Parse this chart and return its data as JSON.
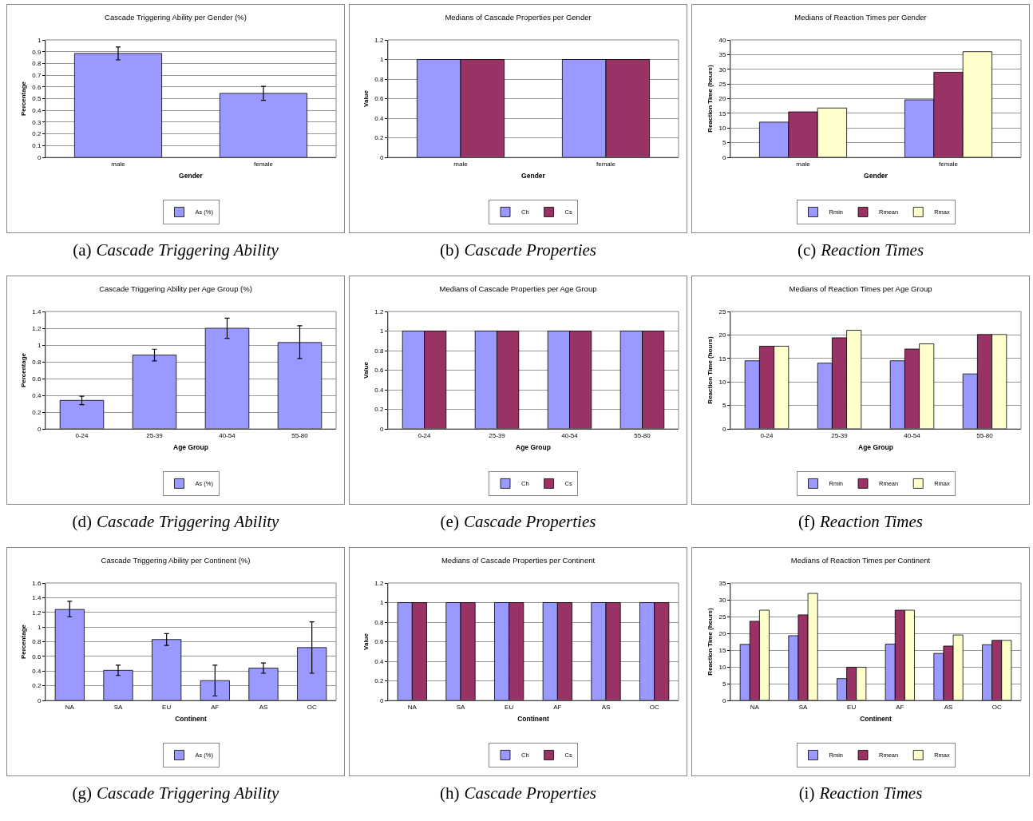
{
  "chart_data": [
    {
      "type": "bar",
      "title": "Cascade Triggering Ability per Gender (%)",
      "xlabel": "Gender",
      "ylabel": "Percentage",
      "categories": [
        "male",
        "female"
      ],
      "series": [
        {
          "name": "As (%)",
          "color": "#9999ff",
          "values": [
            0.885,
            0.545
          ],
          "errors": [
            [
              0.83,
              0.94
            ],
            [
              0.485,
              0.605
            ]
          ]
        }
      ],
      "ylim": [
        0,
        1
      ],
      "yticks": [
        0,
        0.1,
        0.2,
        0.3,
        0.4,
        0.5,
        0.6,
        0.7,
        0.8,
        0.9,
        1
      ],
      "grid": "y",
      "legend": "bottom",
      "annotations": [
        "(a) Cascade Triggering Ability"
      ]
    },
    {
      "type": "bar",
      "title": "Medians of Cascade Properties per Gender",
      "xlabel": "Gender",
      "ylabel": "Value",
      "categories": [
        "male",
        "female"
      ],
      "series": [
        {
          "name": "Ch",
          "color": "#9999ff",
          "values": [
            1,
            1
          ]
        },
        {
          "name": "Cs",
          "color": "#993366",
          "values": [
            1,
            1
          ]
        }
      ],
      "ylim": [
        0,
        1.2
      ],
      "yticks": [
        0,
        0.2,
        0.4,
        0.6,
        0.8,
        1,
        1.2
      ],
      "grid": "y",
      "legend": "bottom",
      "annotations": [
        "(b) Cascade Properties"
      ]
    },
    {
      "type": "bar",
      "title": "Medians of Reaction Times per Gender",
      "xlabel": "Gender",
      "ylabel": "Reaction Time (hours)",
      "categories": [
        "male",
        "female"
      ],
      "series": [
        {
          "name": "Rmin",
          "color": "#9999ff",
          "values": [
            12,
            19.6
          ]
        },
        {
          "name": "Rmean",
          "color": "#993366",
          "values": [
            15.5,
            29
          ]
        },
        {
          "name": "Rmax",
          "color": "#ffffcc",
          "values": [
            16.8,
            36
          ]
        }
      ],
      "ylim": [
        0,
        40
      ],
      "yticks": [
        0,
        5,
        10,
        15,
        20,
        25,
        30,
        35,
        40
      ],
      "grid": "y",
      "legend": "bottom",
      "annotations": [
        "(c) Reaction Times"
      ]
    },
    {
      "type": "bar",
      "title": "Cascade Triggering Ability per Age Group (%)",
      "xlabel": "Age Group",
      "ylabel": "Percentage",
      "categories": [
        "0-24",
        "25-39",
        "40-54",
        "55-80"
      ],
      "series": [
        {
          "name": "As (%)",
          "color": "#9999ff",
          "values": [
            0.34,
            0.88,
            1.2,
            1.03
          ],
          "errors": [
            [
              0.29,
              0.39
            ],
            [
              0.81,
              0.95
            ],
            [
              1.08,
              1.32
            ],
            [
              0.84,
              1.23
            ]
          ]
        }
      ],
      "ylim": [
        0,
        1.4
      ],
      "yticks": [
        0,
        0.2,
        0.4,
        0.6,
        0.8,
        1,
        1.2,
        1.4
      ],
      "grid": "y",
      "legend": "bottom",
      "annotations": [
        "(d) Cascade Triggering Ability"
      ]
    },
    {
      "type": "bar",
      "title": "Medians of Cascade Properties per Age Group",
      "xlabel": "Age Group",
      "ylabel": "Value",
      "categories": [
        "0-24",
        "25-39",
        "40-54",
        "55-80"
      ],
      "series": [
        {
          "name": "Ch",
          "color": "#9999ff",
          "values": [
            1,
            1,
            1,
            1
          ]
        },
        {
          "name": "Cs",
          "color": "#993366",
          "values": [
            1,
            1,
            1,
            1
          ]
        }
      ],
      "ylim": [
        0,
        1.2
      ],
      "yticks": [
        0,
        0.2,
        0.4,
        0.6,
        0.8,
        1,
        1.2
      ],
      "grid": "y",
      "legend": "bottom",
      "annotations": [
        "(e) Cascade Properties"
      ]
    },
    {
      "type": "bar",
      "title": "Medians of Reaction Times per Age Group",
      "xlabel": "Age Group",
      "ylabel": "Reaction Time (hours)",
      "categories": [
        "0-24",
        "25-39",
        "40-54",
        "55-80"
      ],
      "series": [
        {
          "name": "Rmin",
          "color": "#9999ff",
          "values": [
            14.5,
            14,
            14.5,
            11.7
          ]
        },
        {
          "name": "Rmean",
          "color": "#993366",
          "values": [
            17.6,
            19.4,
            17,
            20.1
          ]
        },
        {
          "name": "Rmax",
          "color": "#ffffcc",
          "values": [
            17.6,
            21,
            18.1,
            20.1
          ]
        }
      ],
      "ylim": [
        0,
        25
      ],
      "yticks": [
        0,
        5,
        10,
        15,
        20,
        25
      ],
      "grid": "y",
      "legend": "bottom",
      "annotations": [
        "(f) Reaction Times"
      ]
    },
    {
      "type": "bar",
      "title": "Cascade Triggering Ability per Continent (%)",
      "xlabel": "Continent",
      "ylabel": "Percentage",
      "categories": [
        "NA",
        "SA",
        "EU",
        "AF",
        "AS",
        "OC"
      ],
      "series": [
        {
          "name": "As (%)",
          "color": "#9999ff",
          "values": [
            1.24,
            0.41,
            0.83,
            0.27,
            0.44,
            0.72
          ],
          "errors": [
            [
              1.14,
              1.35
            ],
            [
              0.34,
              0.48
            ],
            [
              0.75,
              0.91
            ],
            [
              0.06,
              0.48
            ],
            [
              0.37,
              0.51
            ],
            [
              0.37,
              1.07
            ]
          ]
        }
      ],
      "ylim": [
        0,
        1.6
      ],
      "yticks": [
        0,
        0.2,
        0.4,
        0.6,
        0.8,
        1,
        1.2,
        1.4,
        1.6
      ],
      "grid": "y",
      "legend": "bottom",
      "annotations": [
        "(g) Cascade Triggering Ability"
      ]
    },
    {
      "type": "bar",
      "title": "Medians of Cascade Properties per Continent",
      "xlabel": "Continent",
      "ylabel": "Value",
      "categories": [
        "NA",
        "SA",
        "EU",
        "AF",
        "AS",
        "OC"
      ],
      "series": [
        {
          "name": "Ch",
          "color": "#9999ff",
          "values": [
            1,
            1,
            1,
            1,
            1,
            1
          ]
        },
        {
          "name": "Cs",
          "color": "#993366",
          "values": [
            1,
            1,
            1,
            1,
            1,
            1
          ]
        }
      ],
      "ylim": [
        0,
        1.2
      ],
      "yticks": [
        0,
        0.2,
        0.4,
        0.6,
        0.8,
        1,
        1.2
      ],
      "grid": "y",
      "legend": "bottom",
      "annotations": [
        "(h) Cascade Properties"
      ]
    },
    {
      "type": "bar",
      "title": "Medians of Reaction Times per Continent",
      "xlabel": "Continent",
      "ylabel": "Reaction Time (hours)",
      "categories": [
        "NA",
        "SA",
        "EU",
        "AF",
        "AS",
        "OC"
      ],
      "series": [
        {
          "name": "Rmin",
          "color": "#9999ff",
          "values": [
            16.7,
            19.3,
            6.5,
            16.8,
            14,
            16.6
          ]
        },
        {
          "name": "Rmean",
          "color": "#993366",
          "values": [
            23.6,
            25.5,
            9.9,
            26.9,
            16.2,
            17.9
          ]
        },
        {
          "name": "Rmax",
          "color": "#ffffcc",
          "values": [
            26.9,
            31.9,
            9.9,
            26.9,
            19.5,
            17.9
          ]
        }
      ],
      "ylim": [
        0,
        35
      ],
      "yticks": [
        0,
        5,
        10,
        15,
        20,
        25,
        30,
        35
      ],
      "grid": "y",
      "legend": "bottom",
      "annotations": [
        "(i) Reaction Times"
      ]
    }
  ]
}
